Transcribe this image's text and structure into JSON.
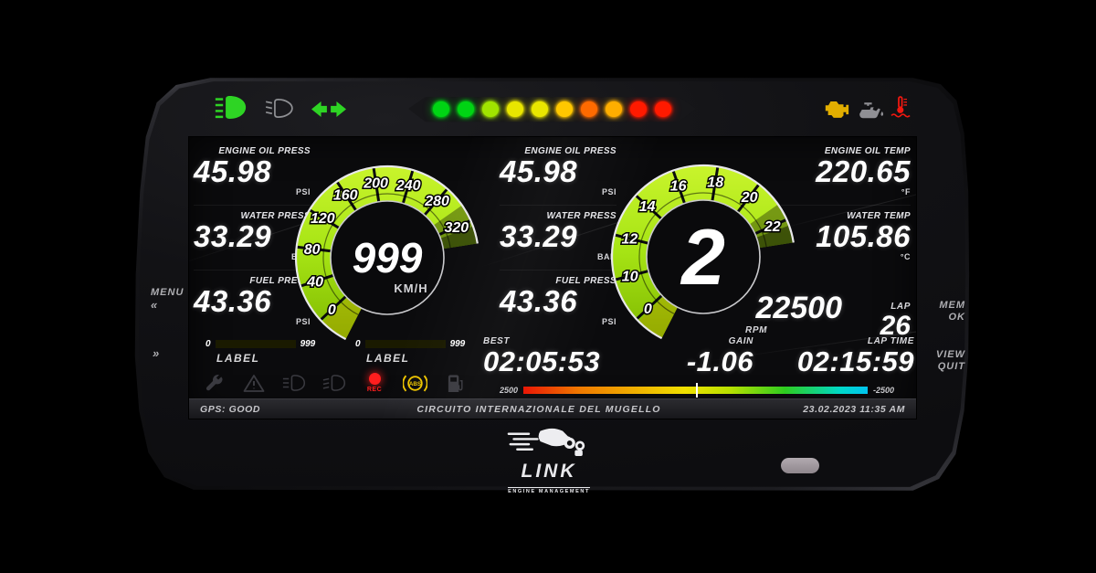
{
  "bezel": {
    "left_controls": [
      {
        "label": "MENU",
        "symbol": "«"
      },
      {
        "label": "",
        "symbol": "»"
      }
    ],
    "right_controls": [
      {
        "line1": "MEM",
        "line2": "OK"
      },
      {
        "line1": "VIEW",
        "line2": "QUIT"
      }
    ],
    "logo": {
      "brand": "LINK",
      "subtitle": "ENGINE MANAGEMENT"
    }
  },
  "indicators": {
    "high_beam": {
      "state": "on",
      "color": "#2ed424"
    },
    "low_beam": {
      "state": "off",
      "color": "#8f9094"
    },
    "turn_signals": {
      "state": "on",
      "color": "#2ed424"
    },
    "check_engine": {
      "state": "on",
      "color": "#e2ae00"
    },
    "oil_warning": {
      "state": "off",
      "color": "#8f8f94"
    },
    "coolant_warning": {
      "state": "on",
      "color": "#f01810"
    }
  },
  "shift_lights": [
    "#00d414",
    "#00d414",
    "#a0e400",
    "#e9e600",
    "#e9e600",
    "#ffc800",
    "#ff6a00",
    "#ffae00",
    "#ff1a00",
    "#ff1a00"
  ],
  "cluster": {
    "left_column": [
      {
        "label": "ENGINE OIL PRESS",
        "value": "45.98",
        "unit": "PSI"
      },
      {
        "label": "WATER PRESS",
        "value": "33.29",
        "unit": "BAR"
      },
      {
        "label": "FUEL PRESS",
        "value": "43.36",
        "unit": "PSI"
      }
    ],
    "mid_column": [
      {
        "label": "ENGINE OIL PRESS",
        "value": "45.98",
        "unit": "PSI"
      },
      {
        "label": "WATER PRESS",
        "value": "33.29",
        "unit": "BAR"
      },
      {
        "label": "FUEL PRESS",
        "value": "43.36",
        "unit": "PSI"
      }
    ],
    "right_column": [
      {
        "label": "ENGINE OIL TEMP",
        "value": "220.65",
        "unit": "°F"
      },
      {
        "label": "WATER TEMP",
        "value": "105.86",
        "unit": "°C"
      }
    ],
    "speed_dial": {
      "ticks": [
        "0",
        "40",
        "80",
        "120",
        "160",
        "200",
        "240",
        "280",
        "320"
      ],
      "value": "999",
      "unit": "KM/H",
      "ring_color": "#a6e414"
    },
    "rpm_dial": {
      "ticks": [
        "0",
        "10",
        "12",
        "14",
        "16",
        "18",
        "20",
        "22"
      ],
      "gear": "2",
      "ring_color": "#a6e414"
    },
    "rpm_readout": {
      "value": "22500",
      "label": "RPM"
    },
    "lap": {
      "label": "LAP",
      "value": "26"
    },
    "lap_time": {
      "label": "LAP TIME",
      "value": "02:15:59"
    },
    "best": {
      "label": "BEST",
      "value": "02:05:53"
    },
    "gain": {
      "label": "GAIN",
      "value": "-1.06",
      "scale_left": "2500",
      "scale_right": "-2500"
    },
    "bar_gauges": [
      {
        "min": "0",
        "max": "999",
        "label": "LABEL"
      },
      {
        "min": "0",
        "max": "999",
        "label": "LABEL"
      }
    ]
  },
  "status_icons": {
    "inactive_color": "#3a3a40",
    "items": [
      {
        "name": "wrench",
        "state": "off"
      },
      {
        "name": "warning",
        "state": "off"
      },
      {
        "name": "rear-fog",
        "state": "off"
      },
      {
        "name": "front-fog",
        "state": "off"
      },
      {
        "name": "rec",
        "state": "on",
        "color": "#ff1e1e",
        "label": "REC"
      },
      {
        "name": "abs",
        "state": "on",
        "color": "#edc400",
        "label": "ABS"
      },
      {
        "name": "fuel",
        "state": "off"
      }
    ]
  },
  "status_bar": {
    "gps": "GPS: GOOD",
    "track": "CIRCUITO INTERNAZIONALE DEL MUGELLO",
    "datetime": "23.02.2023 11:35 AM"
  }
}
